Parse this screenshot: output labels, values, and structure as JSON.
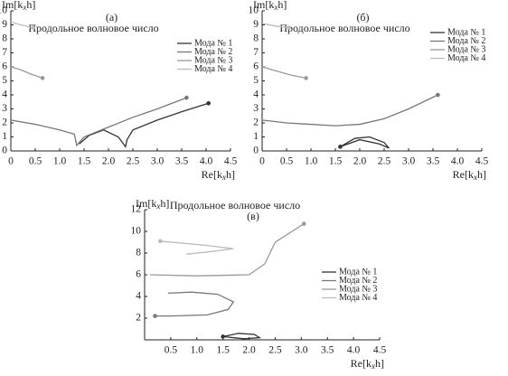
{
  "chart_data": [
    {
      "type": "line",
      "label": "(а)",
      "title": "Продольное волновое число",
      "ylabel": [
        "Im[k",
        "x",
        "h]"
      ],
      "xlabel": [
        "Re[k",
        "x",
        "h]"
      ],
      "xlim": [
        0,
        4.5
      ],
      "ylim": [
        0,
        10
      ],
      "xticks": [
        0,
        0.5,
        {
          "value": 1,
          "label": "1.0"
        },
        1.5,
        {
          "value": 2,
          "label": "2.0"
        },
        2.5,
        {
          "value": 3,
          "label": "3.0"
        },
        3.5,
        {
          "value": 4,
          "label": "4.0"
        },
        4.5
      ],
      "yticks": [
        0,
        1,
        2,
        3,
        4,
        5,
        6,
        7,
        8,
        9,
        10
      ],
      "series": [
        {
          "name": "Мода № 1",
          "color": "#333333",
          "x": [
            1.4,
            1.6,
            1.9,
            2.2,
            2.35,
            2.38,
            2.5,
            3.0,
            3.5,
            4.05
          ],
          "values": [
            0.5,
            1.1,
            1.5,
            1.0,
            0.3,
            0.8,
            1.5,
            2.2,
            2.8,
            3.4
          ]
        },
        {
          "name": "Мода № 2",
          "color": "#777777",
          "x": [
            0,
            0.5,
            1.0,
            1.3,
            1.35,
            1.5,
            2.0,
            2.5,
            3.0,
            3.6
          ],
          "values": [
            2.2,
            1.9,
            1.5,
            1.2,
            0.4,
            1.0,
            1.7,
            2.4,
            3.0,
            3.8
          ]
        },
        {
          "name": "Мода № 3",
          "color": "#999999",
          "x": [
            0,
            0.2,
            0.4,
            0.65
          ],
          "values": [
            6,
            5.8,
            5.5,
            5.2
          ]
        },
        {
          "name": "Мода № 4",
          "color": "#bbbbbb",
          "x": [
            0,
            0.2,
            0.45
          ],
          "values": [
            9.2,
            9.0,
            8.8
          ]
        }
      ]
    },
    {
      "type": "line",
      "label": "(б)",
      "title": "Продольное волновое число",
      "ylabel": [
        "Im[k",
        "x",
        "h]"
      ],
      "xlabel": [
        "Re[k",
        "x",
        "h]"
      ],
      "xlim": [
        0,
        4.5
      ],
      "ylim": [
        0,
        10
      ],
      "xticks": [
        0,
        0.5,
        {
          "value": 1,
          "label": "1.0"
        },
        1.5,
        {
          "value": 2,
          "label": "2.0"
        },
        2.5,
        {
          "value": 3,
          "label": "3.0"
        },
        3.5,
        {
          "value": 4,
          "label": "4.0"
        },
        4.5
      ],
      "yticks": [
        0,
        1,
        2,
        3,
        4,
        5,
        6,
        7,
        8,
        9,
        10
      ],
      "series": [
        {
          "name": "Мода № 1",
          "color": "#333333",
          "x": [
            1.6,
            1.9,
            2.2,
            2.5,
            2.6,
            2.4,
            2.0,
            1.6
          ],
          "values": [
            0.3,
            0.9,
            1.0,
            0.6,
            0.2,
            0.5,
            0.8,
            0.3
          ]
        },
        {
          "name": "Мода № 2",
          "color": "#777777",
          "x": [
            0,
            0.5,
            1.0,
            1.5,
            2.0,
            2.5,
            3.0,
            3.6
          ],
          "values": [
            2.2,
            2.0,
            1.9,
            1.8,
            1.9,
            2.3,
            3.0,
            4.0
          ]
        },
        {
          "name": "Мода № 3",
          "color": "#999999",
          "x": [
            0,
            0.3,
            0.6,
            0.9
          ],
          "values": [
            6,
            5.7,
            5.4,
            5.2
          ]
        },
        {
          "name": "Мода № 4",
          "color": "#bbbbbb",
          "x": [
            0,
            0.3,
            0.55
          ],
          "values": [
            9.1,
            8.9,
            8.8
          ]
        }
      ]
    },
    {
      "type": "line",
      "label": "(в)",
      "title": "Продольное волновое число",
      "ylabel": [
        "Im[k",
        "x",
        "h]"
      ],
      "xlabel": [
        "Re[k",
        "x",
        "h]"
      ],
      "xlim": [
        0,
        4.5
      ],
      "ylim": [
        0,
        12
      ],
      "xticks": [
        0.5,
        {
          "value": 1,
          "label": "1.0"
        },
        1.5,
        {
          "value": 2,
          "label": "2.0"
        },
        2.5,
        {
          "value": 3,
          "label": "3.0"
        },
        3.5,
        {
          "value": 4,
          "label": "4.0"
        },
        4.5
      ],
      "yticks": [
        2,
        4,
        6,
        8,
        10,
        12
      ],
      "series": [
        {
          "name": "Мода № 1",
          "color": "#333333",
          "x": [
            1.5,
            1.8,
            2.1,
            2.2,
            1.9,
            1.5
          ],
          "values": [
            0.3,
            0.6,
            0.5,
            0.2,
            0.1,
            0.3
          ]
        },
        {
          "name": "Мода № 2",
          "color": "#777777",
          "x": [
            0.45,
            0.9,
            1.4,
            1.7,
            1.6,
            1.2,
            0.5,
            0.2
          ],
          "values": [
            4.3,
            4.4,
            4.2,
            3.5,
            2.8,
            2.3,
            2.2,
            2.2
          ]
        },
        {
          "name": "Мода № 3",
          "color": "#999999",
          "x": [
            0.1,
            1.0,
            2.0,
            2.3,
            2.4,
            2.5,
            3.05
          ],
          "values": [
            6,
            5.9,
            6.0,
            7.0,
            8.0,
            9.0,
            10.7
          ]
        },
        {
          "name": "Мода № 4",
          "color": "#bbbbbb",
          "x": [
            0.8,
            1.2,
            1.7,
            1.2,
            0.3
          ],
          "values": [
            7.9,
            8.1,
            8.4,
            8.7,
            9.1
          ]
        }
      ]
    }
  ]
}
